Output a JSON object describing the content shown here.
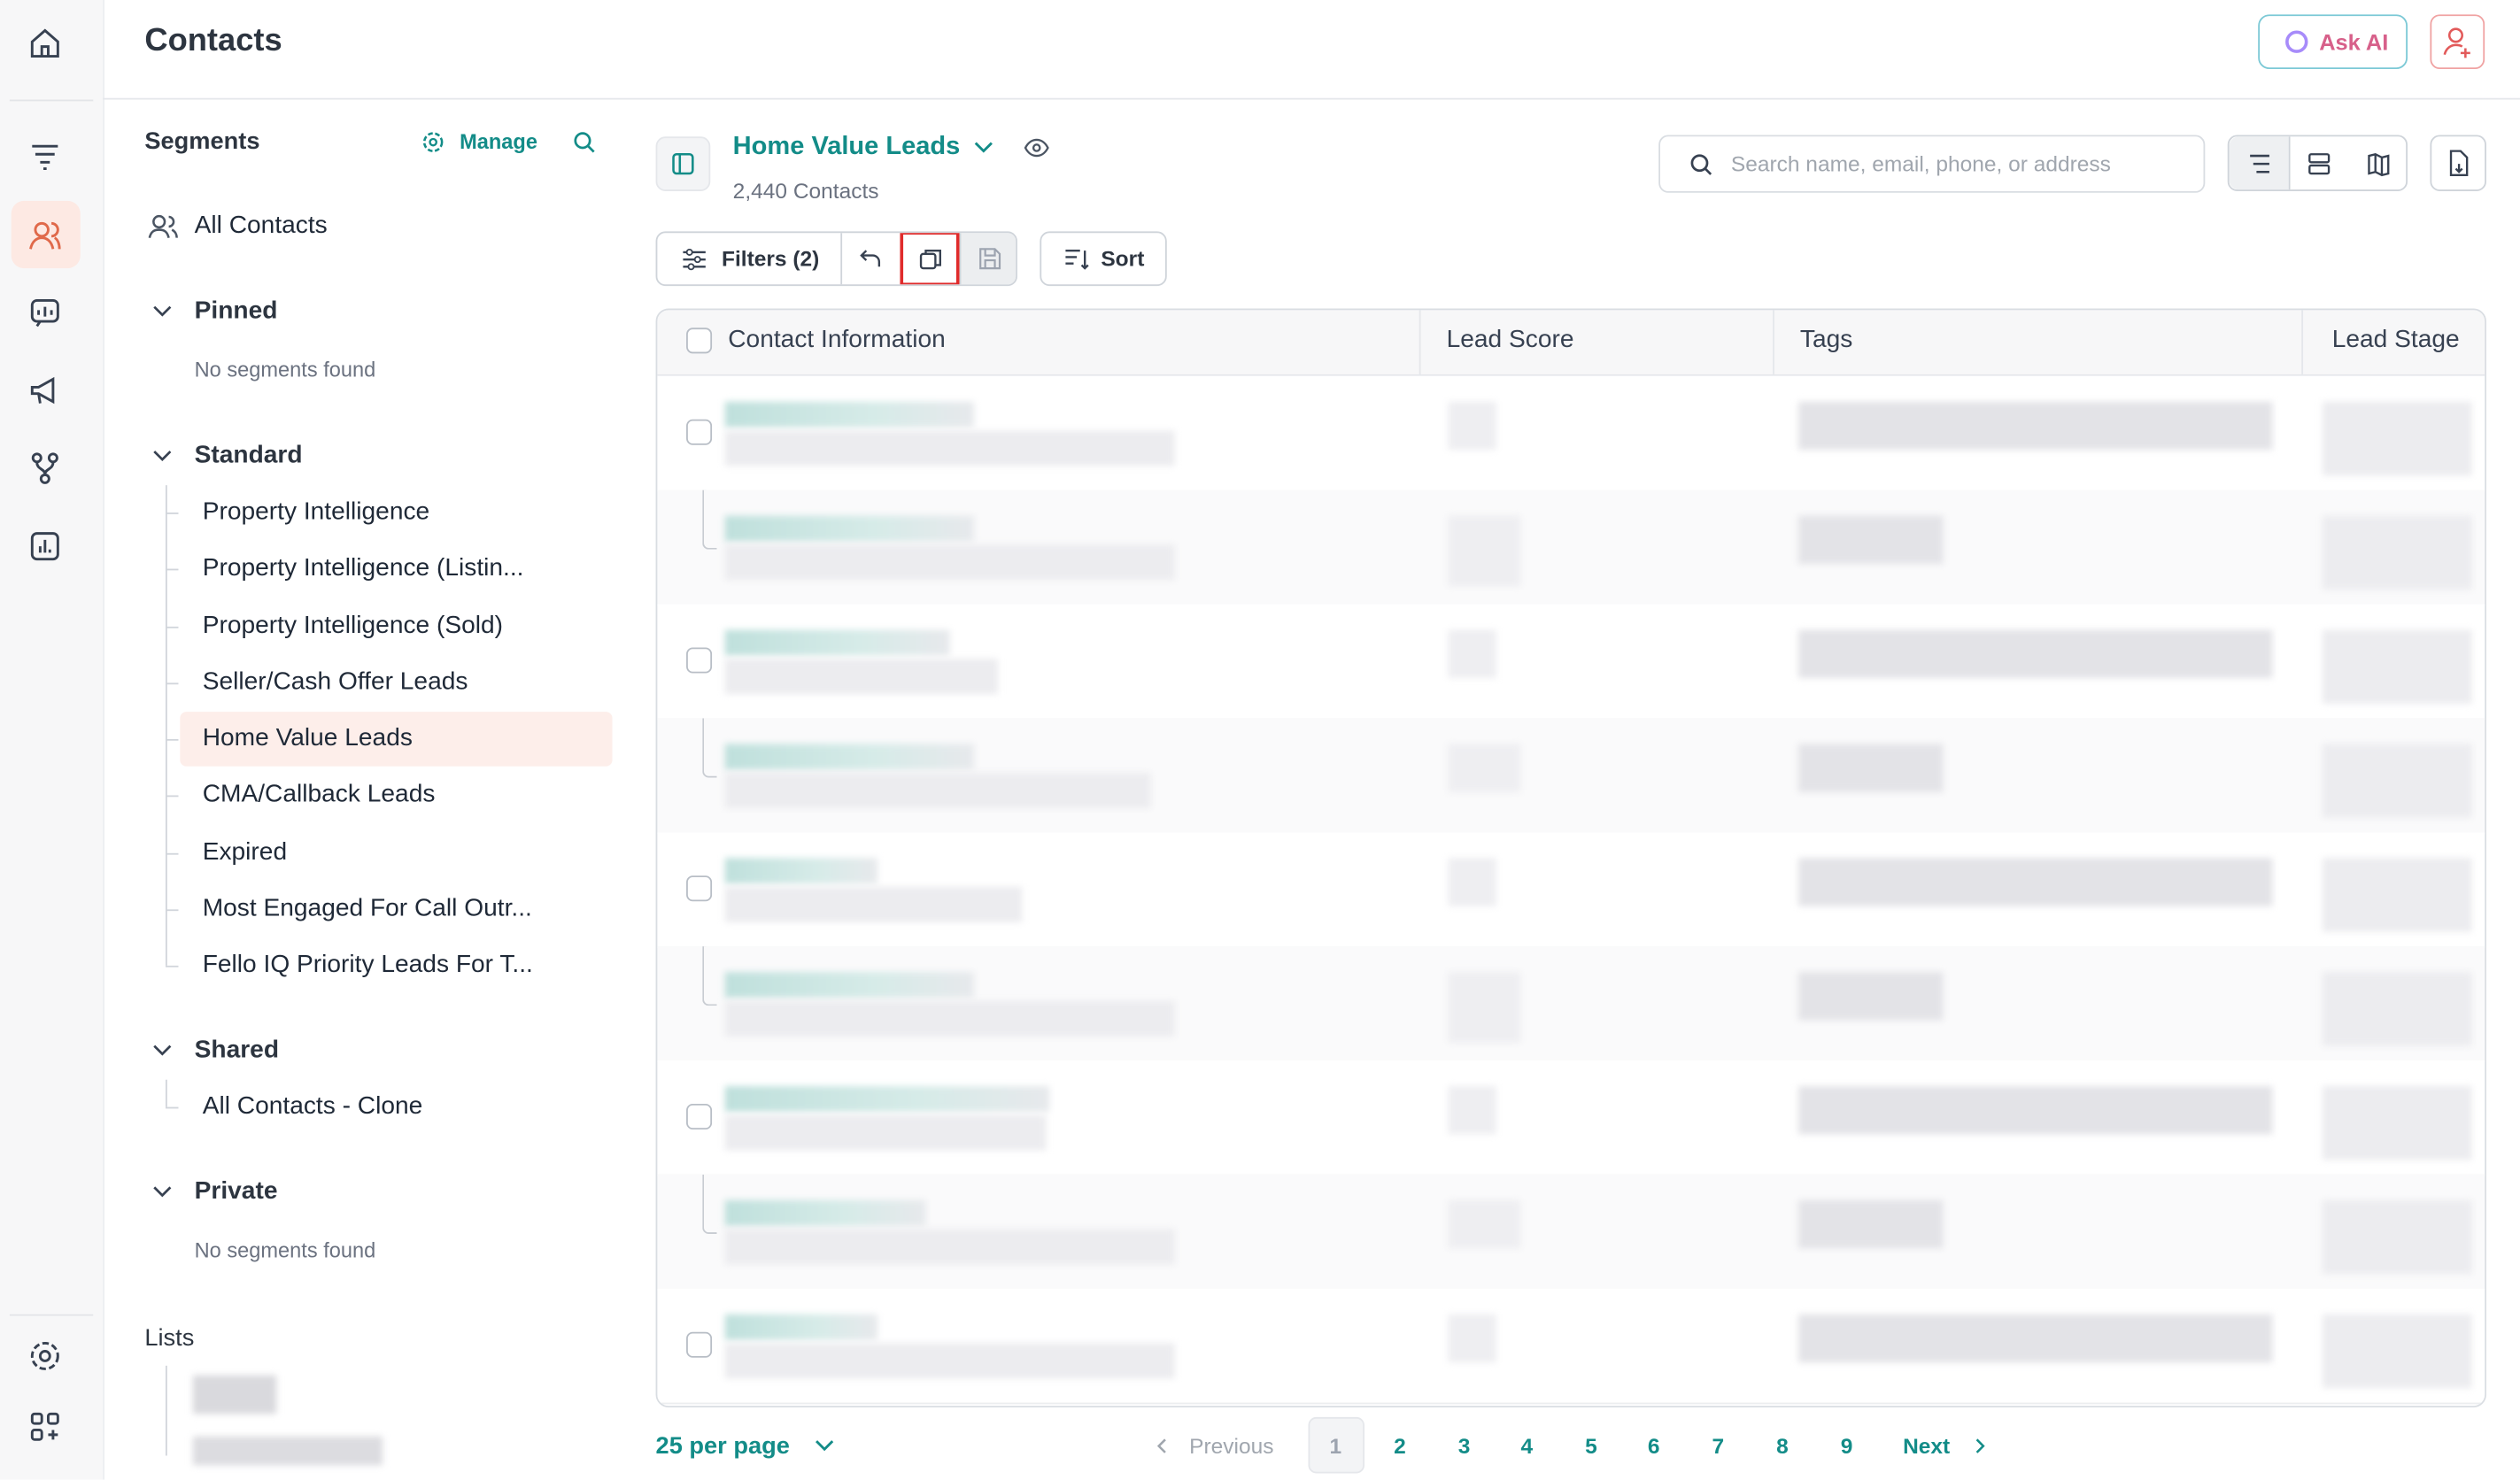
{
  "header": {
    "title": "Contacts",
    "ask_ai": "Ask AI"
  },
  "sidebar": {
    "title": "Segments",
    "manage": "Manage",
    "all_contacts": "All Contacts",
    "groups": [
      {
        "name": "Pinned",
        "empty": "No segments found"
      },
      {
        "name": "Standard",
        "items": [
          "Property Intelligence",
          "Property Intelligence (Listin...",
          "Property Intelligence (Sold)",
          "Seller/Cash Offer Leads",
          "Home Value Leads",
          "CMA/Callback Leads",
          "Expired",
          "Most Engaged For Call Outr...",
          "Fello IQ Priority Leads For T..."
        ]
      },
      {
        "name": "Shared",
        "items": [
          "All Contacts - Clone"
        ]
      },
      {
        "name": "Private",
        "empty": "No segments found"
      }
    ],
    "lists_title": "Lists"
  },
  "segment": {
    "name": "Home Value Leads",
    "count": "2,440 Contacts"
  },
  "search_placeholder": "Search name, email, phone, or address",
  "toolbar": {
    "filters": "Filters (2)",
    "sort": "Sort"
  },
  "table": {
    "columns": [
      "Contact Information",
      "Lead Score",
      "Tags",
      "Lead Stage"
    ]
  },
  "pagination": {
    "per_page": "25 per page",
    "previous": "Previous",
    "pages": [
      1,
      2,
      3,
      4,
      5,
      6,
      7,
      8,
      9
    ],
    "next": "Next"
  }
}
